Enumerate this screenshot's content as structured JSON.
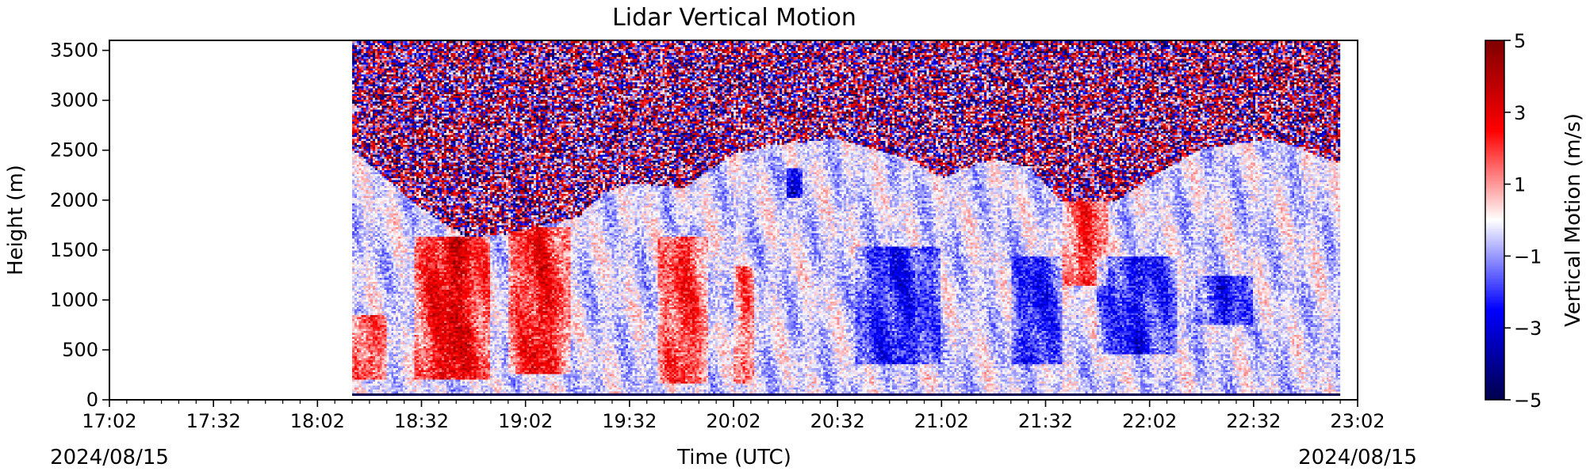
{
  "chart_data": {
    "type": "heatmap",
    "title": "Lidar Vertical Motion",
    "xlabel": "Time (UTC)",
    "ylabel": "Height (m)",
    "date_left": "2024/08/15",
    "date_right": "2024/08/15",
    "x_ticks": [
      "17:02",
      "17:32",
      "18:02",
      "18:32",
      "19:02",
      "19:32",
      "20:02",
      "20:32",
      "21:02",
      "21:32",
      "22:02",
      "22:32",
      "23:02"
    ],
    "xlim": [
      "17:02",
      "23:02"
    ],
    "data_start": "18:12",
    "data_end": "22:57",
    "y_ticks": [
      0,
      500,
      1000,
      1500,
      2000,
      2500,
      3000,
      3500
    ],
    "ylim": [
      0,
      3600
    ],
    "colorbar": {
      "label": "Vertical Motion (m/s)",
      "ticks": [
        5,
        3,
        1,
        -1,
        -3,
        -5
      ],
      "tick_labels": [
        "5",
        "3",
        "1",
        "−1",
        "−3",
        "−5"
      ],
      "range": [
        -5,
        5
      ],
      "colormap": "seismic"
    },
    "noise_floor_heights_m": [
      {
        "time": "18:12",
        "height": 2500
      },
      {
        "time": "18:25",
        "height": 2100
      },
      {
        "time": "18:37",
        "height": 1750
      },
      {
        "time": "18:45",
        "height": 1600
      },
      {
        "time": "18:55",
        "height": 1620
      },
      {
        "time": "19:07",
        "height": 1720
      },
      {
        "time": "19:17",
        "height": 1800
      },
      {
        "time": "19:25",
        "height": 2050
      },
      {
        "time": "19:32",
        "height": 2150
      },
      {
        "time": "19:48",
        "height": 2100
      },
      {
        "time": "20:02",
        "height": 2450
      },
      {
        "time": "20:17",
        "height": 2550
      },
      {
        "time": "20:32",
        "height": 2600
      },
      {
        "time": "20:52",
        "height": 2400
      },
      {
        "time": "21:02",
        "height": 2200
      },
      {
        "time": "21:17",
        "height": 2400
      },
      {
        "time": "21:27",
        "height": 2300
      },
      {
        "time": "21:37",
        "height": 1950
      },
      {
        "time": "21:52",
        "height": 1950
      },
      {
        "time": "22:02",
        "height": 2200
      },
      {
        "time": "22:17",
        "height": 2500
      },
      {
        "time": "22:37",
        "height": 2600
      },
      {
        "time": "22:57",
        "height": 2350
      }
    ],
    "features": [
      {
        "kind": "updraft",
        "t_start": "18:12",
        "t_end": "18:22",
        "h_low": 150,
        "h_high": 800,
        "w": 2.5
      },
      {
        "kind": "updraft",
        "t_start": "18:30",
        "t_end": "18:52",
        "h_low": 150,
        "h_high": 1600,
        "w": 3.5
      },
      {
        "kind": "updraft",
        "t_start": "18:57",
        "t_end": "19:15",
        "h_low": 200,
        "h_high": 1700,
        "w": 3.0
      },
      {
        "kind": "updraft",
        "t_start": "19:40",
        "t_end": "19:55",
        "h_low": 100,
        "h_high": 1600,
        "w": 2.5
      },
      {
        "kind": "updraft",
        "t_start": "20:02",
        "t_end": "20:08",
        "h_low": 100,
        "h_high": 1300,
        "w": 2.0
      },
      {
        "kind": "updraft",
        "t_start": "21:37",
        "t_end": "21:50",
        "h_low": 1100,
        "h_high": 1950,
        "w": 2.5
      },
      {
        "kind": "downdraft",
        "t_start": "20:37",
        "t_end": "21:02",
        "h_low": 300,
        "h_high": 1500,
        "w": -2.0
      },
      {
        "kind": "downdraft",
        "t_start": "21:22",
        "t_end": "21:37",
        "h_low": 300,
        "h_high": 1400,
        "w": -2.0
      },
      {
        "kind": "downdraft",
        "t_start": "21:47",
        "t_end": "22:10",
        "h_low": 400,
        "h_high": 1400,
        "w": -2.0
      },
      {
        "kind": "downdraft",
        "t_start": "22:15",
        "t_end": "22:32",
        "h_low": 700,
        "h_high": 1200,
        "w": -2.0
      },
      {
        "kind": "downdraft",
        "t_start": "20:17",
        "t_end": "20:22",
        "h_low": 2000,
        "h_high": 2300,
        "w": -3.0
      }
    ]
  }
}
